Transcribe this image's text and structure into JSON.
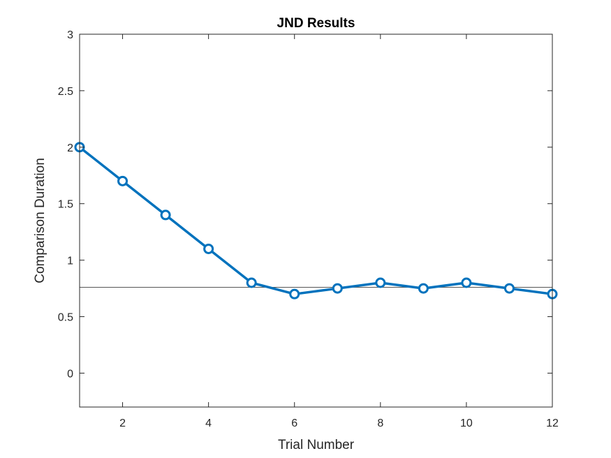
{
  "chart_data": {
    "type": "line",
    "title": "JND Results",
    "xlabel": "Trial Number",
    "ylabel": "Comparison Duration",
    "xlim": [
      1,
      12
    ],
    "ylim": [
      -0.3,
      3
    ],
    "xticks": [
      2,
      4,
      6,
      8,
      10,
      12
    ],
    "xtick_labels": [
      "2",
      "4",
      "6",
      "8",
      "10",
      "12"
    ],
    "yticks": [
      0,
      0.5,
      1,
      1.5,
      2,
      2.5,
      3
    ],
    "ytick_labels": [
      "0",
      "0.5",
      "1",
      "1.5",
      "2",
      "2.5",
      "3"
    ],
    "grid": false,
    "series": [
      {
        "x": [
          1,
          2,
          3,
          4,
          5,
          6,
          7,
          8,
          9,
          10,
          11,
          12
        ],
        "values": [
          2.0,
          1.7,
          1.4,
          1.1,
          0.8,
          0.7,
          0.75,
          0.8,
          0.75,
          0.8,
          0.75,
          0.7
        ],
        "marker": "circle",
        "color": "#0072BD"
      }
    ],
    "reference_line": {
      "y": 0.76,
      "color": "#555555"
    }
  }
}
